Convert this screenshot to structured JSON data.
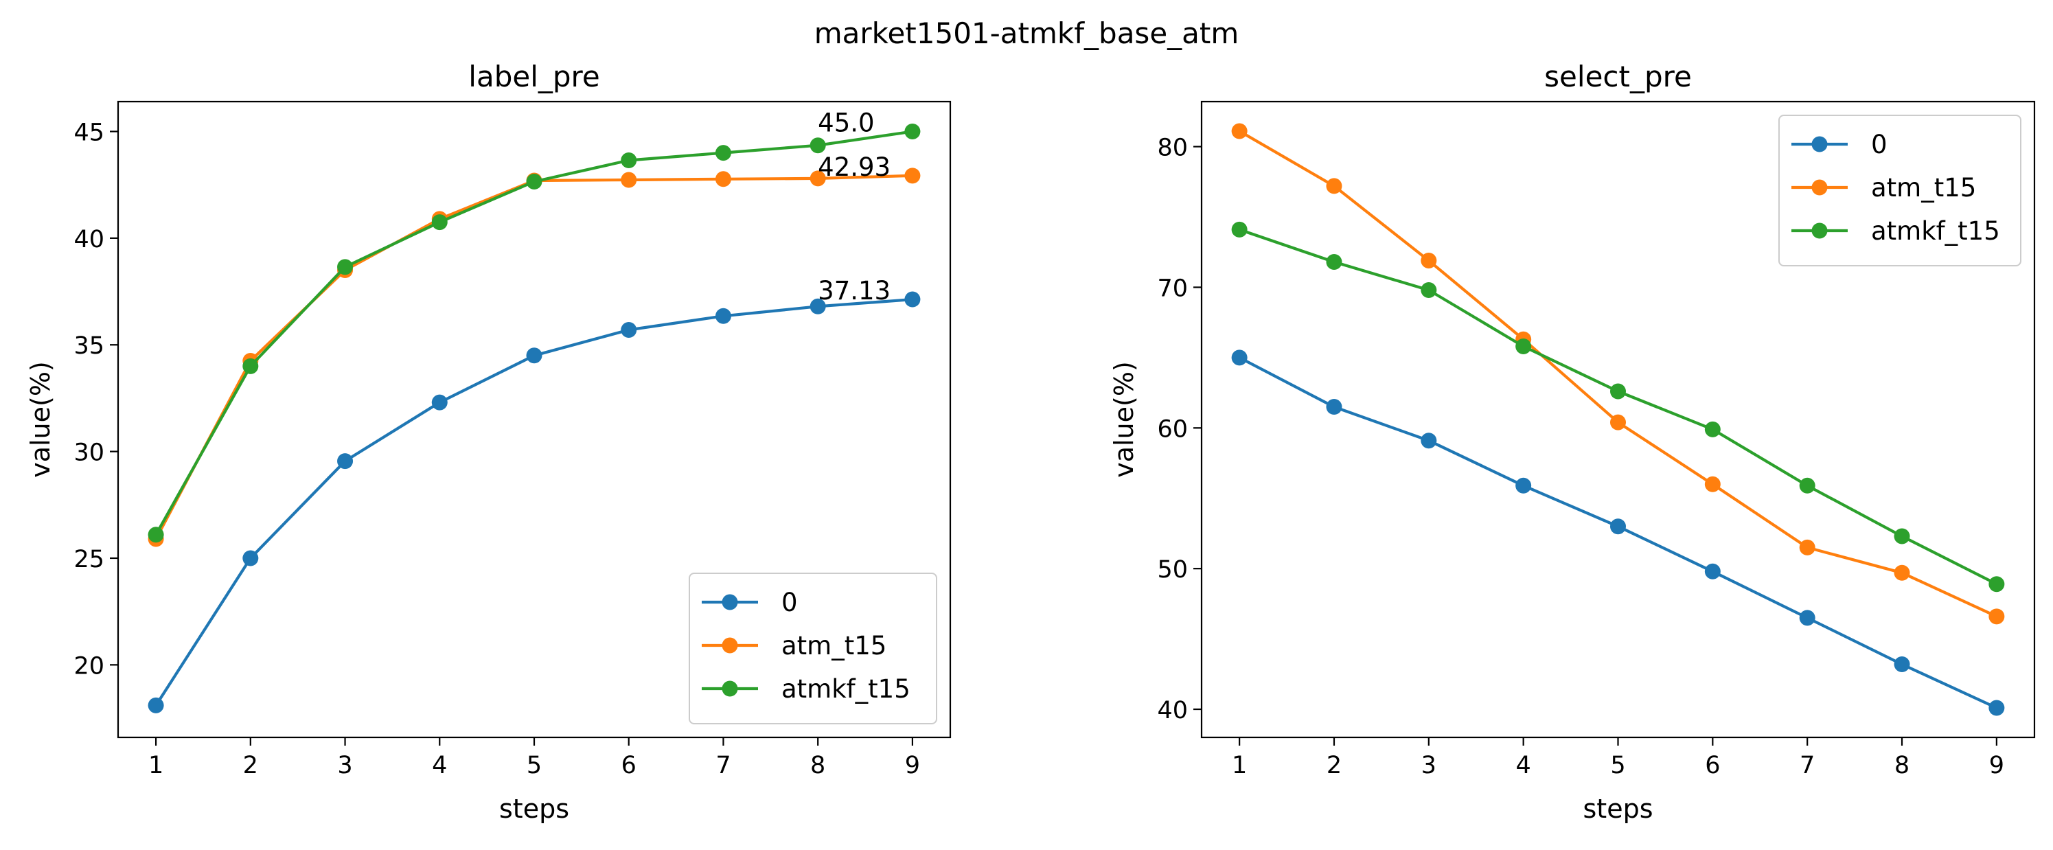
{
  "suptitle": "market1501-atmkf_base_atm",
  "colors": {
    "series_0": "#1f77b4",
    "series_atm_t15": "#ff7f0e",
    "series_atmkf_t15": "#2ca02c"
  },
  "chart_data": [
    {
      "type": "line",
      "title": "label_pre",
      "xlabel": "steps",
      "ylabel": "value(%)",
      "x": [
        1,
        2,
        3,
        4,
        5,
        6,
        7,
        8,
        9
      ],
      "xticks": [
        "1",
        "2",
        "3",
        "4",
        "5",
        "6",
        "7",
        "8",
        "9"
      ],
      "xlim": [
        0.6,
        9.4
      ],
      "ylim": [
        16.6,
        46.4
      ],
      "yticks": [
        "20",
        "25",
        "30",
        "35",
        "40",
        "45"
      ],
      "grid": false,
      "legend_position": "bottom-right",
      "series": [
        {
          "name": "0",
          "color": "#1f77b4",
          "values": [
            18.1,
            25.0,
            29.55,
            32.3,
            34.5,
            35.7,
            36.35,
            36.8,
            37.13
          ]
        },
        {
          "name": "atm_t15",
          "color": "#ff7f0e",
          "values": [
            25.9,
            34.25,
            38.5,
            40.9,
            42.7,
            42.73,
            42.77,
            42.8,
            42.93
          ]
        },
        {
          "name": "atmkf_t15",
          "color": "#2ca02c",
          "values": [
            26.1,
            34.0,
            38.65,
            40.75,
            42.65,
            43.65,
            44.0,
            44.35,
            45.0
          ]
        }
      ],
      "annotations": [
        {
          "text": "45.0",
          "x": 8,
          "y": 45.0
        },
        {
          "text": "42.93",
          "x": 8,
          "y": 42.93
        },
        {
          "text": "37.13",
          "x": 8,
          "y": 37.13
        }
      ]
    },
    {
      "type": "line",
      "title": "select_pre",
      "xlabel": "steps",
      "ylabel": "value(%)",
      "x": [
        1,
        2,
        3,
        4,
        5,
        6,
        7,
        8,
        9
      ],
      "xticks": [
        "1",
        "2",
        "3",
        "4",
        "5",
        "6",
        "7",
        "8",
        "9"
      ],
      "xlim": [
        0.6,
        9.4
      ],
      "ylim": [
        38.0,
        83.2
      ],
      "yticks": [
        "40",
        "50",
        "60",
        "70",
        "80"
      ],
      "grid": false,
      "legend_position": "top-right",
      "series": [
        {
          "name": "0",
          "color": "#1f77b4",
          "values": [
            65.0,
            61.5,
            59.1,
            55.9,
            53.0,
            49.8,
            46.5,
            43.2,
            40.1
          ]
        },
        {
          "name": "atm_t15",
          "color": "#ff7f0e",
          "values": [
            81.1,
            77.2,
            71.9,
            66.3,
            60.4,
            56.0,
            51.5,
            49.7,
            46.6
          ]
        },
        {
          "name": "atmkf_t15",
          "color": "#2ca02c",
          "values": [
            74.1,
            71.8,
            69.8,
            65.8,
            62.6,
            59.9,
            55.9,
            52.3,
            48.9
          ]
        }
      ],
      "annotations": []
    }
  ]
}
